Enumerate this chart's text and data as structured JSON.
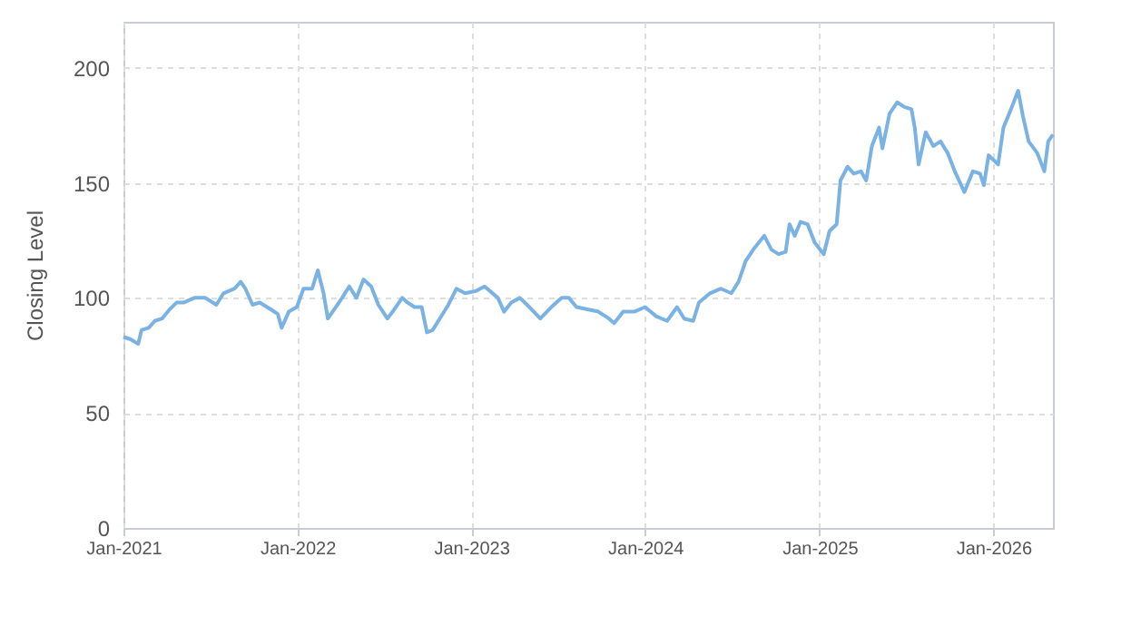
{
  "chart_data": {
    "type": "line",
    "ylabel": "Closing Level",
    "x": [
      "2021-01-01",
      "2021-01-16",
      "2021-02-01",
      "2021-02-08",
      "2021-02-23",
      "2021-03-08",
      "2021-03-23",
      "2021-04-08",
      "2021-04-23",
      "2021-05-08",
      "2021-05-30",
      "2021-06-22",
      "2021-07-15",
      "2021-07-30",
      "2021-08-22",
      "2021-09-04",
      "2021-09-14",
      "2021-09-29",
      "2021-10-14",
      "2021-11-06",
      "2021-11-21",
      "2021-11-29",
      "2021-12-14",
      "2021-12-31",
      "2022-01-14",
      "2022-02-01",
      "2022-02-13",
      "2022-02-25",
      "2022-03-06",
      "2022-03-16",
      "2022-04-05",
      "2022-04-20",
      "2022-05-05",
      "2022-05-20",
      "2022-06-05",
      "2022-06-20",
      "2022-07-09",
      "2022-07-20",
      "2022-08-09",
      "2022-08-20",
      "2022-09-04",
      "2022-09-19",
      "2022-09-30",
      "2022-10-12",
      "2022-10-27",
      "2022-11-14",
      "2022-12-01",
      "2022-12-19",
      "2023-01-11",
      "2023-01-29",
      "2023-02-26",
      "2023-03-11",
      "2023-03-26",
      "2023-04-13",
      "2023-05-03",
      "2023-05-26",
      "2023-06-18",
      "2023-07-10",
      "2023-07-25",
      "2023-08-10",
      "2023-09-02",
      "2023-09-25",
      "2023-10-17",
      "2023-10-28",
      "2023-11-16",
      "2023-12-09",
      "2024-01-01",
      "2024-01-24",
      "2024-02-16",
      "2024-03-08",
      "2024-03-23",
      "2024-04-11",
      "2024-04-23",
      "2024-05-16",
      "2024-06-08",
      "2024-06-30",
      "2024-07-15",
      "2024-07-30",
      "2024-08-15",
      "2024-09-07",
      "2024-09-22",
      "2024-10-07",
      "2024-10-22",
      "2024-10-30",
      "2024-11-10",
      "2024-11-22",
      "2024-12-07",
      "2024-12-22",
      "2025-01-10",
      "2025-01-22",
      "2025-02-06",
      "2025-02-14",
      "2025-03-01",
      "2025-03-14",
      "2025-03-29",
      "2025-04-09",
      "2025-04-21",
      "2025-05-06",
      "2025-05-13",
      "2025-05-28",
      "2025-06-13",
      "2025-06-28",
      "2025-07-13",
      "2025-07-20",
      "2025-07-28",
      "2025-08-12",
      "2025-08-28",
      "2025-09-12",
      "2025-09-27",
      "2025-10-12",
      "2025-11-01",
      "2025-11-19",
      "2025-12-04",
      "2025-12-12",
      "2025-12-22",
      "2026-01-11",
      "2026-01-22",
      "2026-02-07",
      "2026-02-22",
      "2026-03-04",
      "2026-03-16",
      "2026-04-03",
      "2026-04-18",
      "2026-04-26",
      "2026-05-06"
    ],
    "series": [
      {
        "color": "#7ab3e3",
        "values": [
          83,
          82,
          80,
          86,
          87,
          90,
          91,
          95,
          98,
          98,
          100,
          100,
          97,
          102,
          104,
          107,
          104,
          97,
          98,
          95,
          93,
          87,
          94,
          96,
          104,
          104,
          112,
          102,
          91,
          94,
          100,
          105,
          100,
          108,
          105,
          97,
          91,
          94,
          100,
          98,
          96,
          96,
          85,
          86,
          91,
          97,
          104,
          102,
          103,
          105,
          100,
          94,
          98,
          100,
          96,
          91,
          96,
          100,
          100,
          96,
          95,
          94,
          91,
          89,
          94,
          94,
          96,
          92,
          90,
          96,
          91,
          90,
          98,
          102,
          104,
          102,
          107,
          116,
          121,
          127,
          121,
          119,
          120,
          132,
          127,
          133,
          132,
          124,
          119,
          129,
          132,
          151,
          157,
          154,
          155,
          151,
          166,
          174,
          165,
          180,
          185,
          183,
          182,
          174,
          158,
          172,
          166,
          168,
          163,
          155,
          146,
          155,
          154,
          149,
          162,
          158,
          174,
          182,
          190,
          179,
          168,
          163,
          155,
          168,
          171
        ]
      }
    ],
    "ylim": [
      0,
      220
    ],
    "yticks": [
      0,
      50,
      100,
      150,
      200
    ],
    "xlim": [
      "2021-01-01",
      "2026-05-06"
    ],
    "xticks": [
      {
        "value": "2021-01-01",
        "label": "Jan-2021"
      },
      {
        "value": "2022-01-01",
        "label": "Jan-2022"
      },
      {
        "value": "2023-01-01",
        "label": "Jan-2023"
      },
      {
        "value": "2024-01-01",
        "label": "Jan-2024"
      },
      {
        "value": "2025-01-01",
        "label": "Jan-2025"
      },
      {
        "value": "2026-01-01",
        "label": "Jan-2026"
      }
    ],
    "grid": true,
    "marker": "none",
    "line_style": "solid"
  }
}
